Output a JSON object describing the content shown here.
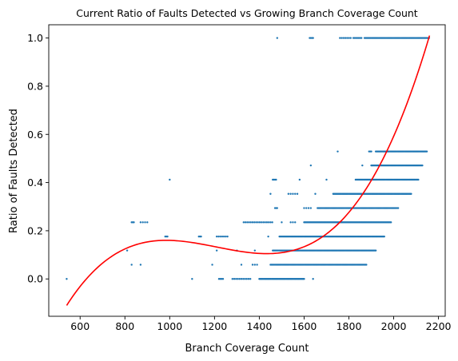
{
  "chart_data": {
    "type": "scatter",
    "title": "Current Ratio of Faults Detected vs Growing Branch Coverage Count",
    "xlabel": "Branch Coverage Count",
    "ylabel": "Ratio of Faults Detected",
    "xlim": [
      460,
      2230
    ],
    "ylim": [
      -0.155,
      1.055
    ],
    "xticks": [
      600,
      800,
      1000,
      1200,
      1400,
      1600,
      1800,
      2000,
      2200
    ],
    "yticks": [
      0.0,
      0.2,
      0.4,
      0.6,
      0.8,
      1.0
    ],
    "ytick_labels": [
      "0.0",
      "0.2",
      "0.4",
      "0.6",
      "0.8",
      "1.0"
    ],
    "grid": false,
    "colors": {
      "points": "#1f77b4",
      "fit": "#ff0000"
    },
    "series": [
      {
        "kind": "scatter-band",
        "note_segments": "each entry: y value and x ranges [start, end, step] where points appear",
        "bands": [
          {
            "y": 1.0,
            "ranges": [
              [
                1480,
                1480,
                10
              ],
              [
                1625,
                1640,
                5
              ],
              [
                1760,
                1810,
                8
              ],
              [
                1820,
                1860,
                6
              ],
              [
                1870,
                2160,
                4
              ]
            ]
          },
          {
            "y": 0.529,
            "ranges": [
              [
                1750,
                1750,
                10
              ],
              [
                1890,
                1900,
                5
              ],
              [
                1920,
                2150,
                4
              ]
            ]
          },
          {
            "y": 0.471,
            "ranges": [
              [
                1630,
                1630,
                10
              ],
              [
                1860,
                1860,
                10
              ],
              [
                1900,
                2130,
                4
              ]
            ]
          },
          {
            "y": 0.412,
            "ranges": [
              [
                1000,
                1000,
                10
              ],
              [
                1460,
                1475,
                5
              ],
              [
                1580,
                1580,
                10
              ],
              [
                1700,
                1700,
                10
              ],
              [
                1830,
                2110,
                4
              ]
            ]
          },
          {
            "y": 0.353,
            "ranges": [
              [
                1450,
                1450,
                10
              ],
              [
                1530,
                1570,
                10
              ],
              [
                1650,
                1650,
                10
              ],
              [
                1730,
                2080,
                4
              ]
            ]
          },
          {
            "y": 0.294,
            "ranges": [
              [
                1470,
                1480,
                5
              ],
              [
                1600,
                1630,
                10
              ],
              [
                1660,
                2020,
                4
              ]
            ]
          },
          {
            "y": 0.235,
            "ranges": [
              [
                830,
                840,
                5
              ],
              [
                870,
                900,
                10
              ],
              [
                1330,
                1460,
                8
              ],
              [
                1500,
                1500,
                10
              ],
              [
                1540,
                1560,
                10
              ],
              [
                1600,
                1990,
                4
              ]
            ]
          },
          {
            "y": 0.176,
            "ranges": [
              [
                980,
                990,
                5
              ],
              [
                1130,
                1140,
                5
              ],
              [
                1210,
                1260,
                8
              ],
              [
                1440,
                1440,
                10
              ],
              [
                1490,
                1960,
                4
              ]
            ]
          },
          {
            "y": 0.118,
            "ranges": [
              [
                810,
                810,
                10
              ],
              [
                1210,
                1210,
                10
              ],
              [
                1300,
                1300,
                10
              ],
              [
                1380,
                1380,
                10
              ],
              [
                1460,
                1920,
                4
              ]
            ]
          },
          {
            "y": 0.059,
            "ranges": [
              [
                830,
                830,
                10
              ],
              [
                870,
                870,
                10
              ],
              [
                1190,
                1190,
                10
              ],
              [
                1320,
                1320,
                10
              ],
              [
                1370,
                1390,
                10
              ],
              [
                1450,
                1880,
                4
              ]
            ]
          },
          {
            "y": 0.0,
            "ranges": [
              [
                540,
                540,
                10
              ],
              [
                1100,
                1100,
                10
              ],
              [
                1220,
                1240,
                6
              ],
              [
                1280,
                1360,
                8
              ],
              [
                1400,
                1600,
                4
              ],
              [
                1640,
                1640,
                10
              ]
            ]
          }
        ]
      },
      {
        "kind": "fit-curve",
        "x_range": [
          540,
          2160
        ],
        "cubic_through": [
          [
            540,
            -0.11
          ],
          [
            1000,
            0.16
          ],
          [
            1430,
            0.105
          ],
          [
            2160,
            1.01
          ]
        ]
      }
    ]
  }
}
